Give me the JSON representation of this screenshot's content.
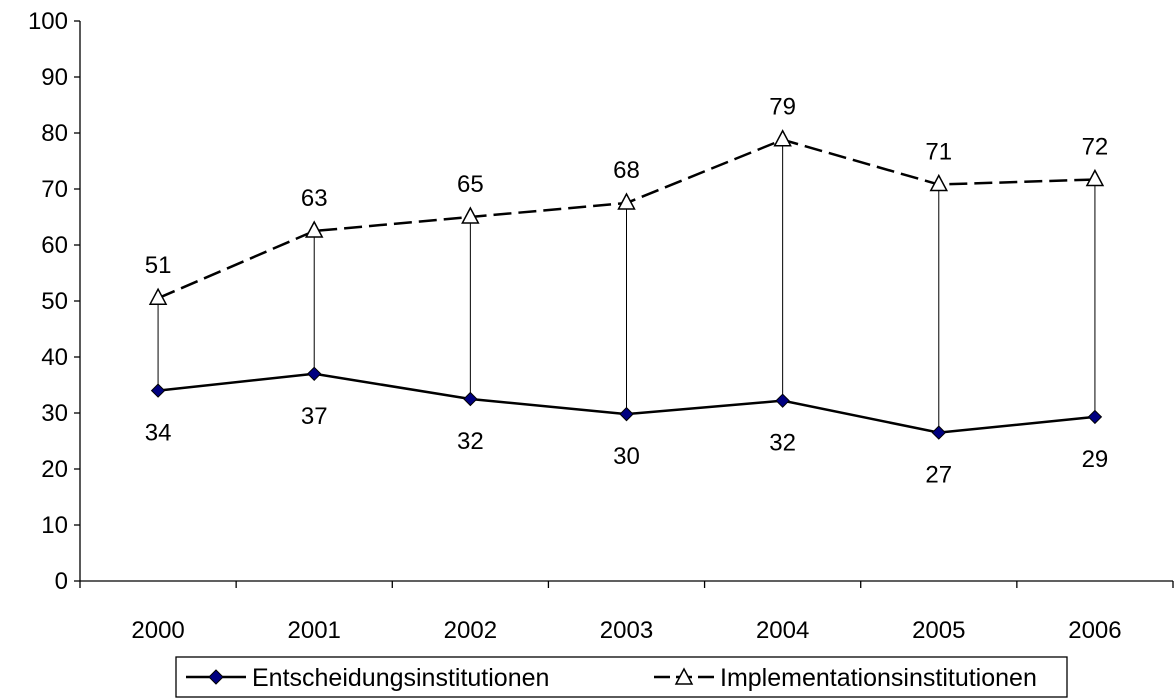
{
  "chart_data": {
    "type": "line",
    "title": "",
    "xlabel": "",
    "ylabel": "",
    "categories": [
      "2000",
      "2001",
      "2002",
      "2003",
      "2004",
      "2005",
      "2006"
    ],
    "ylim": [
      0,
      100
    ],
    "yticks": [
      "0",
      "10",
      "20",
      "30",
      "40",
      "50",
      "60",
      "70",
      "80",
      "90",
      "100"
    ],
    "grid": false,
    "legend_position": "bottom",
    "drop_lines": true,
    "series": [
      {
        "name": "Entscheidungsinstitutionen",
        "values": [
          34,
          37,
          32.5,
          29.8,
          32.2,
          26.5,
          29.3
        ],
        "labels": [
          "34",
          "37",
          "32",
          "30",
          "32",
          "27",
          "29"
        ],
        "marker": "diamond",
        "line_style": "solid",
        "marker_color": "#000080",
        "line_color": "#000000"
      },
      {
        "name": "Implementationsinstitutionen",
        "values": [
          50.5,
          62.5,
          65,
          67.5,
          78.8,
          70.8,
          71.7
        ],
        "labels": [
          "51",
          "63",
          "65",
          "68",
          "79",
          "71",
          "72"
        ],
        "marker": "triangle",
        "line_style": "dashed",
        "marker_color": "#ffffff",
        "line_color": "#000000"
      }
    ]
  }
}
